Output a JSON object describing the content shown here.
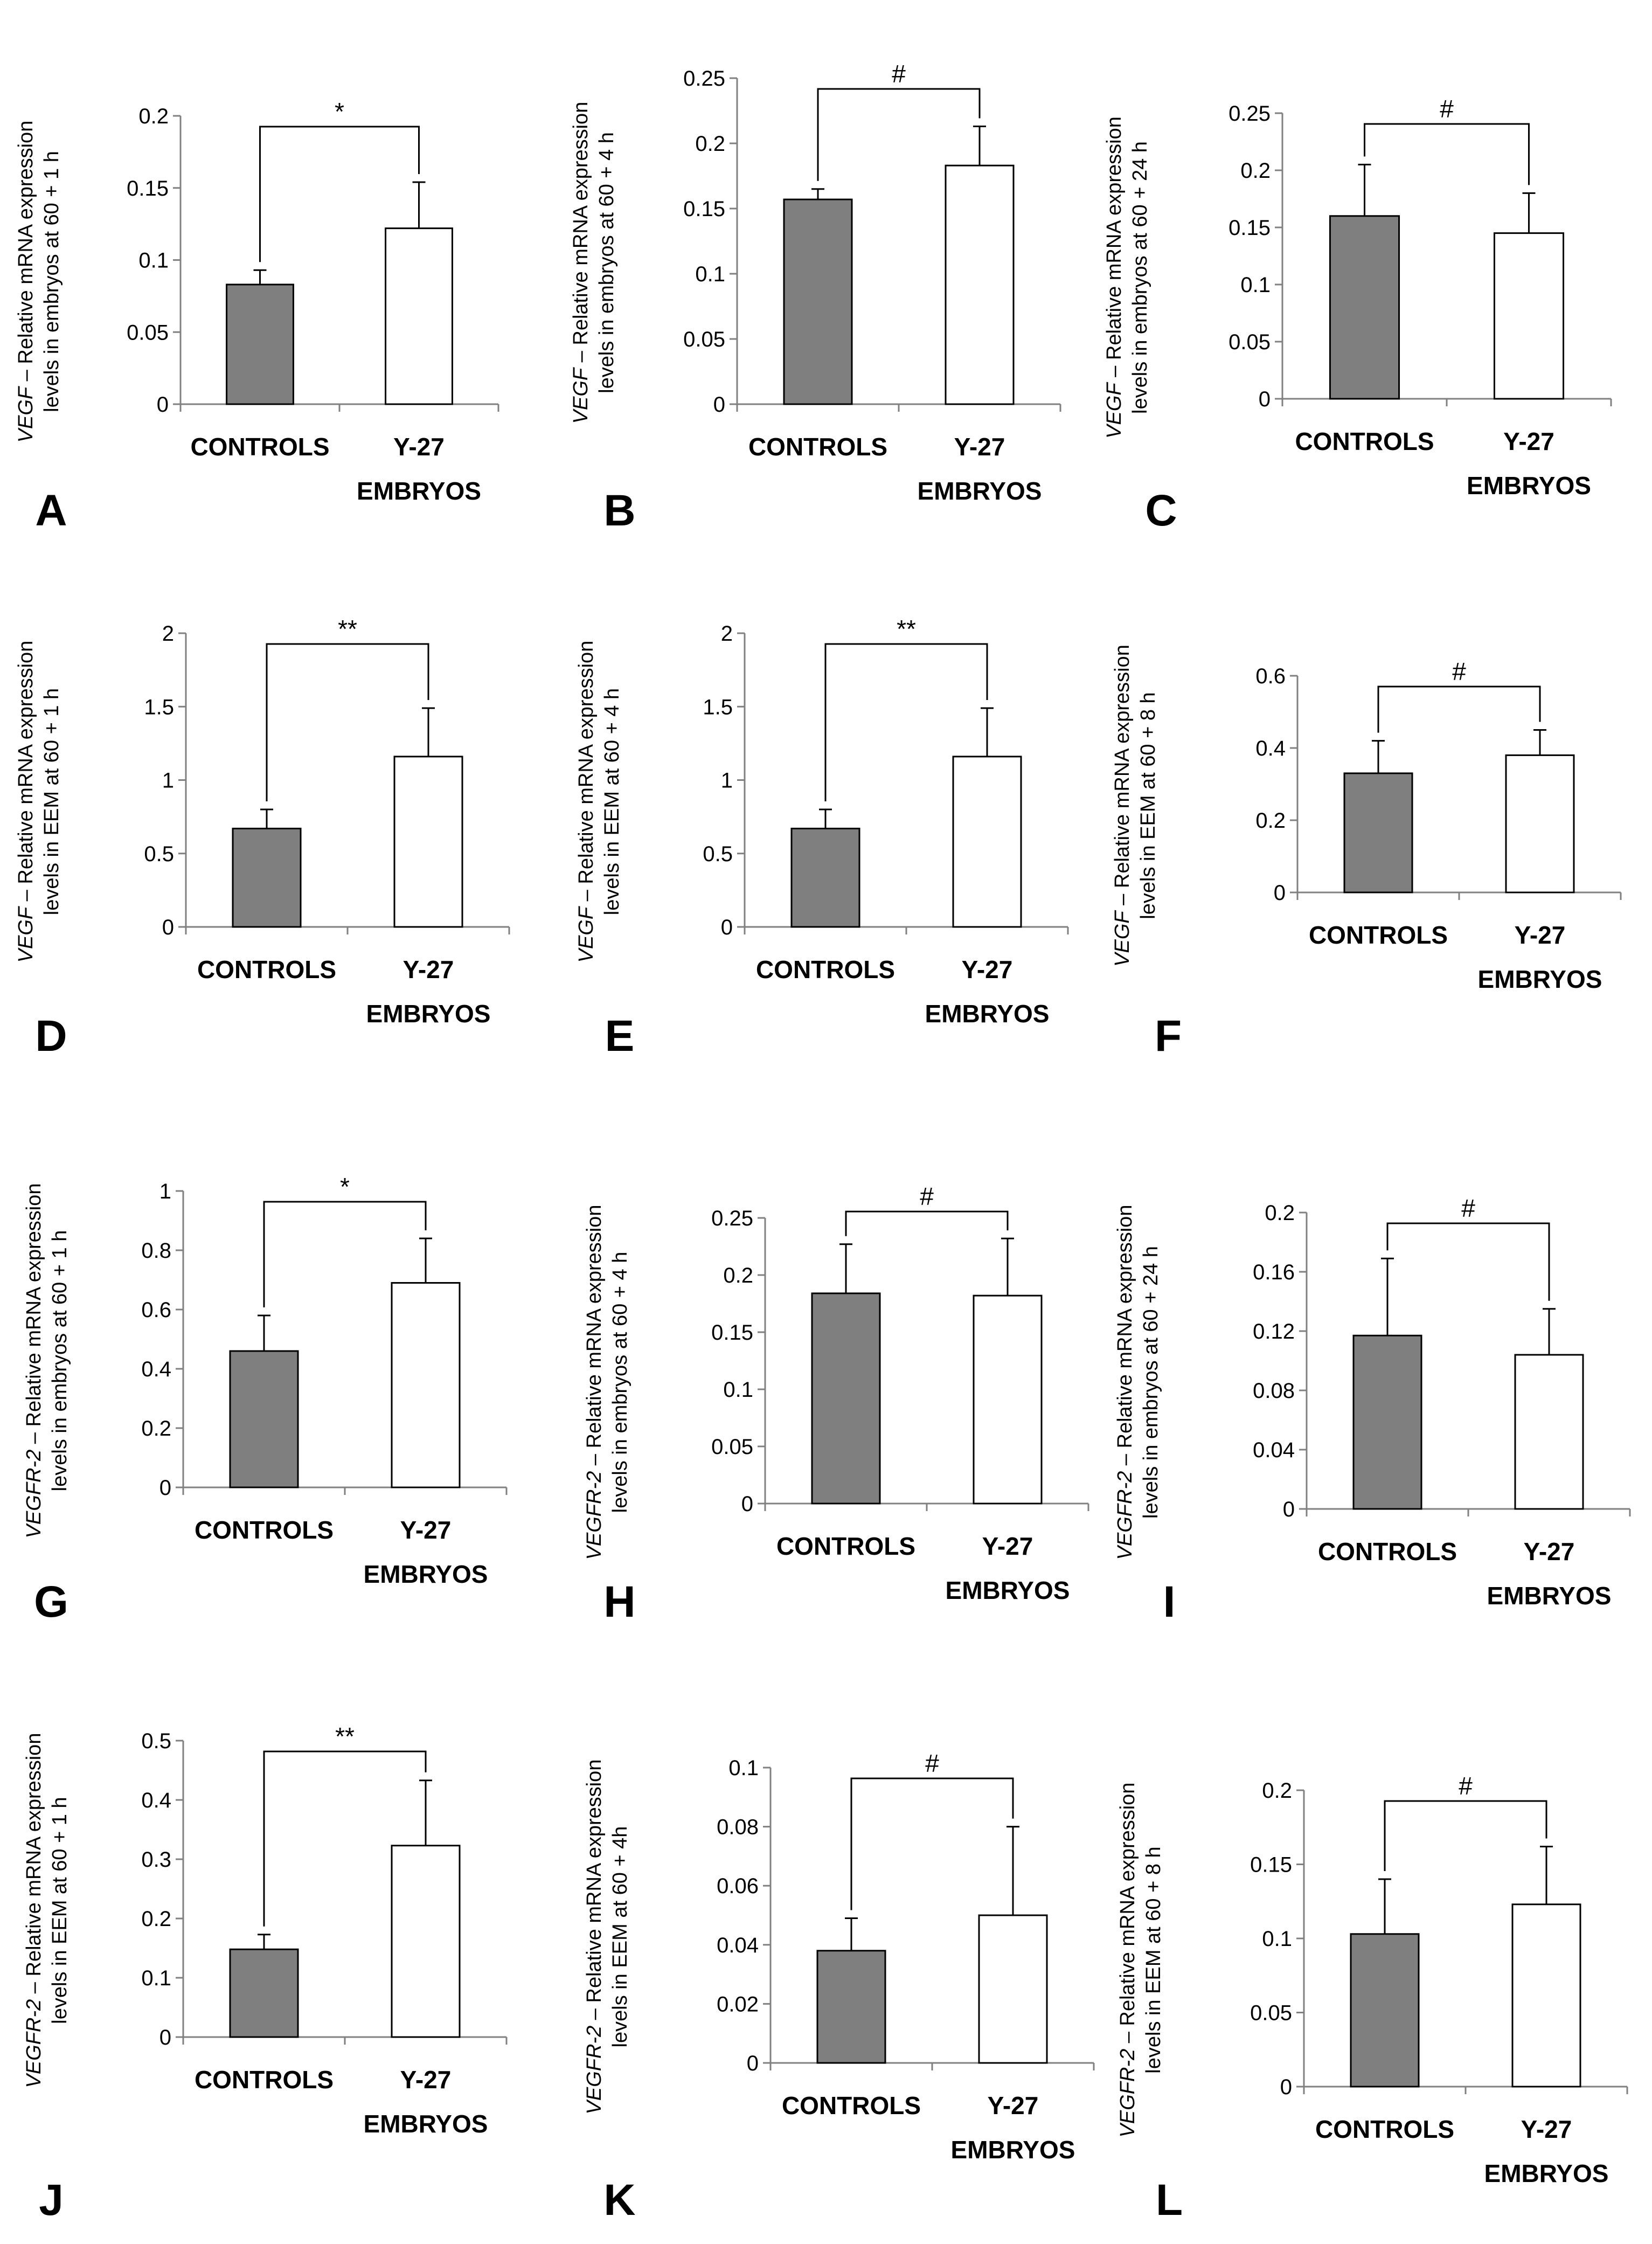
{
  "chart_data": [
    {
      "panel": "A",
      "type": "bar",
      "ylabel_gene": "VEGF",
      "ylabel_rest": " – Relative mRNA  expression",
      "ylabel_line2": "levels in embryos at 60 + 1 h",
      "ylim": [
        0,
        0.2
      ],
      "ticks": [
        "0",
        "0.05",
        "0.1",
        "0.15",
        "0.2"
      ],
      "categories": [
        "CONTROLS",
        "Y-27 EMBRYOS"
      ],
      "values": [
        0.083,
        0.122
      ],
      "errors": [
        0.01,
        0.032
      ],
      "significance": "*",
      "colors": [
        "#7f7f7f",
        "#ffffff"
      ]
    },
    {
      "panel": "B",
      "type": "bar",
      "ylabel_gene": "VEGF",
      "ylabel_rest": " – Relative mRNA  expression",
      "ylabel_line2": "levels in embryos at 60 + 4 h",
      "ylim": [
        0,
        0.25
      ],
      "ticks": [
        "0",
        "0.05",
        "0.1",
        "0.15",
        "0.2",
        "0.25"
      ],
      "categories": [
        "CONTROLS",
        "Y-27 EMBRYOS"
      ],
      "values": [
        0.157,
        0.183
      ],
      "errors": [
        0.008,
        0.03
      ],
      "significance": "#",
      "colors": [
        "#7f7f7f",
        "#ffffff"
      ]
    },
    {
      "panel": "C",
      "type": "bar",
      "ylabel_gene": "VEGF",
      "ylabel_rest": " – Relative mRNA  expression",
      "ylabel_line2": "levels in embryos at 60 + 24 h",
      "ylim": [
        0,
        0.25
      ],
      "ticks": [
        "0",
        "0.05",
        "0.1",
        "0.15",
        "0.2",
        "0.25"
      ],
      "categories": [
        "CONTROLS",
        "Y-27 EMBRYOS"
      ],
      "values": [
        0.16,
        0.145
      ],
      "errors": [
        0.045,
        0.035
      ],
      "significance": "#",
      "colors": [
        "#7f7f7f",
        "#ffffff"
      ]
    },
    {
      "panel": "D",
      "type": "bar",
      "ylabel_gene": "VEGF",
      "ylabel_rest": " – Relative mRNA  expression",
      "ylabel_line2": "levels in EEM at 60 + 1 h",
      "ylim": [
        0,
        2
      ],
      "ticks": [
        "0",
        "0.5",
        "1",
        "1.5",
        "2"
      ],
      "categories": [
        "CONTROLS",
        "Y-27 EMBRYOS"
      ],
      "values": [
        0.67,
        1.16
      ],
      "errors": [
        0.13,
        0.33
      ],
      "significance": "**",
      "colors": [
        "#7f7f7f",
        "#ffffff"
      ]
    },
    {
      "panel": "E",
      "type": "bar",
      "ylabel_gene": "VEGF",
      "ylabel_rest": " – Relative mRNA  expression",
      "ylabel_line2": "levels in EEM at 60 + 4 h",
      "ylim": [
        0,
        2
      ],
      "ticks": [
        "0",
        "0.5",
        "1",
        "1.5",
        "2"
      ],
      "categories": [
        "CONTROLS",
        "Y-27 EMBRYOS"
      ],
      "values": [
        0.67,
        1.16
      ],
      "errors": [
        0.13,
        0.33
      ],
      "significance": "**",
      "colors": [
        "#7f7f7f",
        "#ffffff"
      ]
    },
    {
      "panel": "F",
      "type": "bar",
      "ylabel_gene": "VEGF",
      "ylabel_rest": " – Relative mRNA  expression",
      "ylabel_line2": "levels in EEM at 60 + 8 h",
      "ylim": [
        0,
        0.6
      ],
      "ticks": [
        "0",
        "0.2",
        "0.4",
        "0.6"
      ],
      "categories": [
        "CONTROLS",
        "Y-27 EMBRYOS"
      ],
      "values": [
        0.33,
        0.38
      ],
      "errors": [
        0.09,
        0.07
      ],
      "significance": "#",
      "colors": [
        "#7f7f7f",
        "#ffffff"
      ]
    },
    {
      "panel": "G",
      "type": "bar",
      "ylabel_gene": "VEGFR-2",
      "ylabel_rest": " – Relative mRNA  expression",
      "ylabel_line2": "levels in embryos at 60 + 1 h",
      "ylim": [
        0,
        1
      ],
      "ticks": [
        "0",
        "0.2",
        "0.4",
        "0.6",
        "0.8",
        "1"
      ],
      "categories": [
        "CONTROLS",
        "Y-27 EMBRYOS"
      ],
      "values": [
        0.46,
        0.69
      ],
      "errors": [
        0.12,
        0.15
      ],
      "significance": "*",
      "colors": [
        "#7f7f7f",
        "#ffffff"
      ]
    },
    {
      "panel": "H",
      "type": "bar",
      "ylabel_gene": "VEGFR-2",
      "ylabel_rest": " – Relative mRNA  expression",
      "ylabel_line2": "levels in embryos at 60 + 4 h",
      "ylim": [
        0,
        0.25
      ],
      "ticks": [
        "0",
        "0.05",
        "0.1",
        "0.15",
        "0.2",
        "0.25"
      ],
      "categories": [
        "CONTROLS",
        "Y-27 EMBRYOS"
      ],
      "values": [
        0.184,
        0.182
      ],
      "errors": [
        0.043,
        0.05
      ],
      "significance": "#",
      "colors": [
        "#7f7f7f",
        "#ffffff"
      ]
    },
    {
      "panel": "I",
      "type": "bar",
      "ylabel_gene": "VEGFR-2",
      "ylabel_rest": " – Relative mRNA  expression",
      "ylabel_line2": "levels in embryos at 60 + 24 h",
      "ylim": [
        0,
        0.2
      ],
      "ticks": [
        "0",
        "0.04",
        "0.08",
        "0.12",
        "0.16",
        "0.2"
      ],
      "categories": [
        "CONTROLS",
        "Y-27 EMBRYOS"
      ],
      "values": [
        0.117,
        0.104
      ],
      "errors": [
        0.052,
        0.031
      ],
      "significance": "#",
      "colors": [
        "#7f7f7f",
        "#ffffff"
      ]
    },
    {
      "panel": "J",
      "type": "bar",
      "ylabel_gene": "VEGFR-2",
      "ylabel_rest": " – Relative mRNA  expression",
      "ylabel_line2": "levels in EEM at 60 + 1 h",
      "ylim": [
        0,
        0.5
      ],
      "ticks": [
        "0",
        "0.1",
        "0.2",
        "0.3",
        "0.4",
        "0.5"
      ],
      "categories": [
        "CONTROLS",
        "Y-27 EMBRYOS"
      ],
      "values": [
        0.148,
        0.323
      ],
      "errors": [
        0.025,
        0.11
      ],
      "significance": "**",
      "colors": [
        "#7f7f7f",
        "#ffffff"
      ]
    },
    {
      "panel": "K",
      "type": "bar",
      "ylabel_gene": "VEGFR-2",
      "ylabel_rest": " – Relative mRNA  expression",
      "ylabel_line2": "levels in EEM at 60 + 4h",
      "ylim": [
        0,
        0.1
      ],
      "ticks": [
        "0",
        "0.02",
        "0.04",
        "0.06",
        "0.08",
        "0.1"
      ],
      "categories": [
        "CONTROLS",
        "Y-27 EMBRYOS"
      ],
      "values": [
        0.038,
        0.05
      ],
      "errors": [
        0.011,
        0.03
      ],
      "significance": "#",
      "colors": [
        "#7f7f7f",
        "#ffffff"
      ]
    },
    {
      "panel": "L",
      "type": "bar",
      "ylabel_gene": "VEGFR-2",
      "ylabel_rest": " – Relative mRNA  expression",
      "ylabel_line2": "levels in EEM at 60 + 8 h",
      "ylim": [
        0,
        0.2
      ],
      "ticks": [
        "0",
        "0.05",
        "0.1",
        "0.15",
        "0.2"
      ],
      "categories": [
        "CONTROLS",
        "Y-27 EMBRYOS"
      ],
      "values": [
        0.103,
        0.123
      ],
      "errors": [
        0.037,
        0.039
      ],
      "significance": "#",
      "colors": [
        "#7f7f7f",
        "#ffffff"
      ]
    }
  ]
}
